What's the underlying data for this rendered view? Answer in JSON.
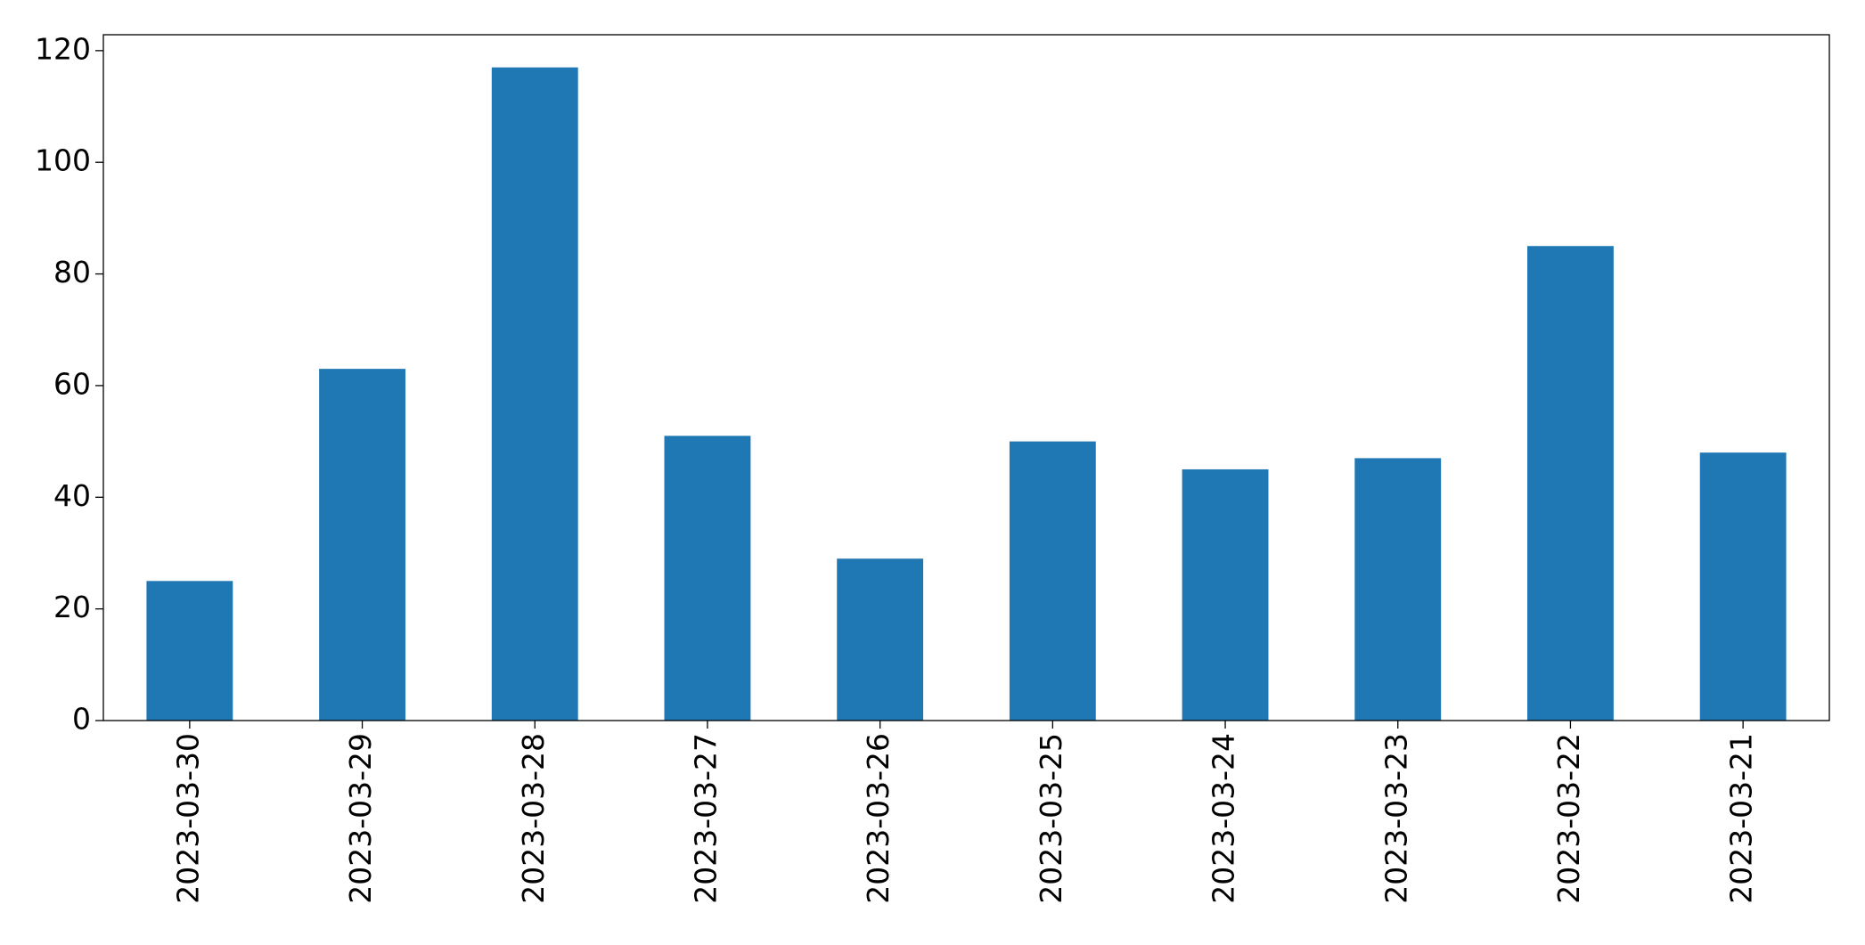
{
  "chart_data": {
    "type": "bar",
    "categories": [
      "2023-03-30",
      "2023-03-29",
      "2023-03-28",
      "2023-03-27",
      "2023-03-26",
      "2023-03-25",
      "2023-03-24",
      "2023-03-23",
      "2023-03-22",
      "2023-03-21"
    ],
    "values": [
      25,
      63,
      117,
      51,
      29,
      50,
      45,
      47,
      85,
      48
    ],
    "color": "#1f77b4",
    "ylim": [
      0,
      122.85
    ],
    "yticks": [
      0,
      20,
      40,
      60,
      80,
      100,
      120
    ],
    "grid": false
  }
}
